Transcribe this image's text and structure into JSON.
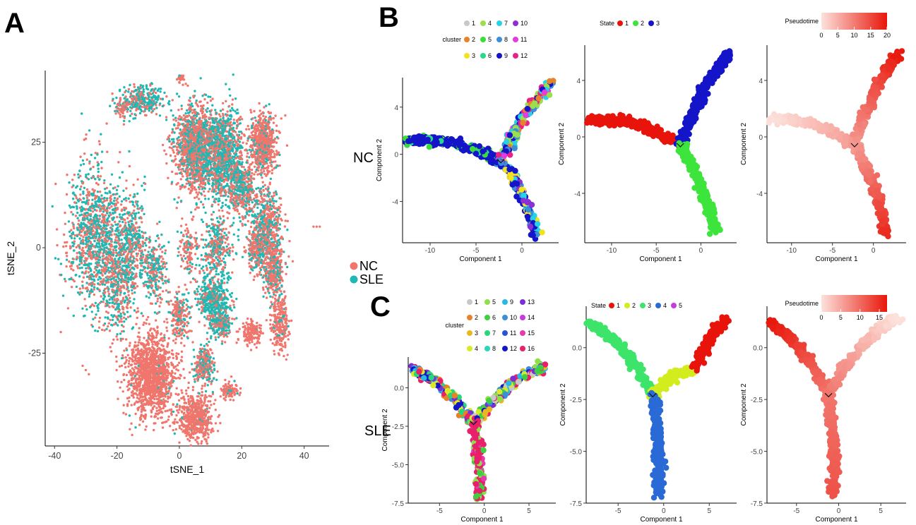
{
  "panels": {
    "A": "A",
    "B": "B",
    "C": "C"
  },
  "row_labels": {
    "nc": "NC",
    "sle": "SLE"
  },
  "chart_data": [
    {
      "id": "A",
      "type": "scatter",
      "xlabel": "tSNE_1",
      "ylabel": "tSNE_2",
      "xlim": [
        -43,
        48
      ],
      "ylim": [
        -47,
        42
      ],
      "xticks": [
        -40,
        -20,
        0,
        20,
        40
      ],
      "yticks": [
        -25,
        0,
        25
      ],
      "legend": {
        "placement": "right",
        "entries": [
          "NC",
          "SLE"
        ]
      },
      "colors": {
        "NC": "#f0766d",
        "SLE": "#1fb8b3"
      },
      "clusters": [
        {
          "cx": -27,
          "cy": 3,
          "rx": 8,
          "ry": 15,
          "n": 1100,
          "sle": 0.55
        },
        {
          "cx": -16,
          "cy": 0,
          "rx": 5,
          "ry": 11,
          "n": 500,
          "sle": 0.55
        },
        {
          "cx": -20,
          "cy": -10,
          "rx": 5,
          "ry": 10,
          "n": 300,
          "sle": 0.5
        },
        {
          "cx": -8,
          "cy": -6,
          "rx": 4,
          "ry": 7,
          "n": 250,
          "sle": 0.55
        },
        {
          "cx": -12,
          "cy": 35,
          "rx": 6,
          "ry": 3,
          "n": 300,
          "sle": 0.65
        },
        {
          "cx": -18,
          "cy": 33,
          "rx": 2,
          "ry": 2,
          "n": 60,
          "sle": 0.2
        },
        {
          "cx": 0.5,
          "cy": 40,
          "rx": 1,
          "ry": 1,
          "n": 25,
          "sle": 0.0
        },
        {
          "cx": 5,
          "cy": 24,
          "rx": 6,
          "ry": 9,
          "n": 1300,
          "sle": 0.35
        },
        {
          "cx": 14,
          "cy": 22,
          "rx": 6,
          "ry": 10,
          "n": 1100,
          "sle": 0.6
        },
        {
          "cx": 20,
          "cy": 14,
          "rx": 4,
          "ry": 6,
          "n": 400,
          "sle": 0.45
        },
        {
          "cx": 27,
          "cy": 25,
          "rx": 4,
          "ry": 6,
          "n": 600,
          "sle": 0.15
        },
        {
          "cx": 28,
          "cy": 6,
          "rx": 4,
          "ry": 8,
          "n": 450,
          "sle": 0.4
        },
        {
          "cx": 30,
          "cy": -5,
          "rx": 3,
          "ry": 7,
          "n": 400,
          "sle": 0.3
        },
        {
          "cx": 25,
          "cy": 0,
          "rx": 2.5,
          "ry": 5,
          "n": 250,
          "sle": 0.35
        },
        {
          "cx": 32,
          "cy": -18,
          "rx": 2.5,
          "ry": 6,
          "n": 250,
          "sle": 0.1
        },
        {
          "cx": 23,
          "cy": -20,
          "rx": 3,
          "ry": 2.5,
          "n": 150,
          "sle": 0.05
        },
        {
          "cx": 12,
          "cy": 0,
          "rx": 5,
          "ry": 6,
          "n": 300,
          "sle": 0.5
        },
        {
          "cx": 11,
          "cy": -12,
          "rx": 5,
          "ry": 5,
          "n": 450,
          "sle": 0.75
        },
        {
          "cx": 13,
          "cy": -18,
          "rx": 3,
          "ry": 3,
          "n": 200,
          "sle": 0.65
        },
        {
          "cx": 0,
          "cy": -16,
          "rx": 3,
          "ry": 5,
          "n": 200,
          "sle": 0.25
        },
        {
          "cx": -9,
          "cy": -30,
          "rx": 7,
          "ry": 9,
          "n": 1300,
          "sle": 0.02
        },
        {
          "cx": 5,
          "cy": -40,
          "rx": 5,
          "ry": 5,
          "n": 550,
          "sle": 0.05
        },
        {
          "cx": 8,
          "cy": -28,
          "rx": 3,
          "ry": 4,
          "n": 250,
          "sle": 0.4
        },
        {
          "cx": 16,
          "cy": -34,
          "rx": 2.5,
          "ry": 2,
          "n": 100,
          "sle": 0.1
        },
        {
          "cx": 3,
          "cy": 0,
          "rx": 3,
          "ry": 6,
          "n": 120,
          "sle": 0.25
        }
      ],
      "stray": [
        {
          "x": 43,
          "y": 5,
          "group": "NC"
        },
        {
          "x": 44,
          "y": 5,
          "group": "NC"
        },
        {
          "x": 45,
          "y": 5,
          "group": "NC"
        },
        {
          "x": -31,
          "y": -28,
          "group": "NC"
        },
        {
          "x": -30,
          "y": -29,
          "group": "NC"
        },
        {
          "x": -29,
          "y": -30,
          "group": "NC"
        },
        {
          "x": -38,
          "y": -20,
          "group": "NC"
        }
      ]
    },
    {
      "id": "B1",
      "type": "scatter",
      "xlabel": "Component 1",
      "ylabel": "Component 2",
      "xlim": [
        -13,
        4
      ],
      "ylim": [
        -7.5,
        6.5
      ],
      "xticks": [
        -10,
        -5,
        0
      ],
      "yticks": [
        -4,
        0,
        4
      ],
      "color_by": "cluster",
      "legend": {
        "title": "cluster",
        "placement": "top",
        "entries": [
          "1",
          "2",
          "3",
          "4",
          "5",
          "6",
          "7",
          "8",
          "9",
          "10",
          "11",
          "12"
        ],
        "colors": [
          "#c8c8c8",
          "#e8822a",
          "#f2e31c",
          "#9be04a",
          "#3bdc3b",
          "#29d98a",
          "#28d2e6",
          "#3c8fd6",
          "#1414c8",
          "#8e2fd6",
          "#e43ae0",
          "#e8208a"
        ]
      },
      "branches": [
        {
          "from": [
            -12.5,
            1.2
          ],
          "to": [
            -2.3,
            -0.6
          ],
          "mix": [
            8,
            8,
            8,
            8,
            4,
            5
          ]
        },
        {
          "from": [
            -2.3,
            -0.6
          ],
          "to": [
            3.2,
            6.0
          ],
          "mix": [
            3,
            6,
            7,
            8,
            1,
            11,
            10
          ]
        },
        {
          "from": [
            -2.3,
            -0.6
          ],
          "to": [
            1.6,
            -6.8
          ],
          "mix": [
            8,
            7,
            8,
            6,
            9,
            2
          ]
        }
      ]
    },
    {
      "id": "B2",
      "type": "scatter",
      "xlabel": "Component 1",
      "ylabel": "Component 2",
      "xlim": [
        -13,
        4
      ],
      "ylim": [
        -7.5,
        6.5
      ],
      "xticks": [
        -10,
        -5,
        0
      ],
      "yticks": [
        -4,
        0,
        4
      ],
      "color_by": "State",
      "legend": {
        "title": "State",
        "placement": "top",
        "entries": [
          "1",
          "2",
          "3"
        ],
        "colors": [
          "#e8140c",
          "#3ce43c",
          "#1414c8"
        ]
      },
      "branches": [
        {
          "from": [
            -12.5,
            1.2
          ],
          "to": [
            -2.3,
            -0.6
          ],
          "state": 0
        },
        {
          "from": [
            -2.3,
            -0.6
          ],
          "to": [
            3.2,
            6.0
          ],
          "state": 2
        },
        {
          "from": [
            -2.3,
            -0.6
          ],
          "to": [
            1.6,
            -6.8
          ],
          "state": 1
        }
      ]
    },
    {
      "id": "B3",
      "type": "scatter",
      "xlabel": "Component 1",
      "ylabel": "Component 2",
      "xlim": [
        -13,
        4
      ],
      "ylim": [
        -7.5,
        6.5
      ],
      "xticks": [
        -10,
        -5,
        0
      ],
      "yticks": [
        -4,
        0,
        4
      ],
      "color_by": "Pseudotime",
      "legend": {
        "title": "Pseudotime",
        "placement": "top",
        "ticks": [
          "0",
          "5",
          "10",
          "15",
          "20"
        ],
        "range": [
          0,
          20
        ]
      },
      "branches": [
        {
          "from": [
            -12.5,
            1.2
          ],
          "to": [
            -2.3,
            -0.6
          ],
          "pt": [
            0,
            7
          ]
        },
        {
          "from": [
            -2.3,
            -0.6
          ],
          "to": [
            3.2,
            6.0
          ],
          "pt": [
            7,
            20
          ]
        },
        {
          "from": [
            -2.3,
            -0.6
          ],
          "to": [
            1.6,
            -6.8
          ],
          "pt": [
            7,
            18
          ]
        }
      ]
    },
    {
      "id": "C1",
      "type": "scatter",
      "xlabel": "Component 1",
      "ylabel": "Component 2",
      "xlim": [
        -8.5,
        8
      ],
      "ylim": [
        -7.5,
        2
      ],
      "xticks": [
        -5,
        0,
        5
      ],
      "yticks": [
        -7.5,
        -5.0,
        -2.5,
        0.0
      ],
      "color_by": "cluster",
      "legend": {
        "title": "cluster",
        "placement": "top",
        "entries": [
          "1",
          "2",
          "3",
          "4",
          "5",
          "6",
          "7",
          "8",
          "9",
          "10",
          "11",
          "12",
          "13",
          "14",
          "15",
          "16"
        ],
        "colors": [
          "#c8c8c8",
          "#e8822a",
          "#e8b822",
          "#d8e82a",
          "#8ee04a",
          "#3fcf3f",
          "#28d878",
          "#2ad6b8",
          "#28b8e6",
          "#3c8fd6",
          "#2c52d6",
          "#1414c8",
          "#7a2fd6",
          "#c83ae0",
          "#e43ab0",
          "#e8206a"
        ]
      },
      "branches": [
        {
          "from": [
            -8.0,
            1.2
          ],
          "to": [
            -1.2,
            -2.3
          ],
          "mix": [
            8,
            9,
            11,
            12,
            15,
            3,
            1,
            6
          ]
        },
        {
          "from": [
            -1.2,
            -2.3
          ],
          "to": [
            6.8,
            1.4
          ],
          "mix": [
            4,
            5,
            3,
            8,
            9,
            11,
            12,
            15,
            0,
            2
          ]
        },
        {
          "from": [
            -1.2,
            -2.3
          ],
          "to": [
            -0.6,
            -7.1
          ],
          "mix": [
            15,
            15,
            15,
            14,
            4,
            5
          ]
        }
      ]
    },
    {
      "id": "C2",
      "type": "scatter",
      "xlabel": "Component 1",
      "ylabel": "Component 2",
      "xlim": [
        -8.5,
        8
      ],
      "ylim": [
        -7.5,
        2
      ],
      "xticks": [
        -5,
        0,
        5
      ],
      "yticks": [
        -7.5,
        -5.0,
        -2.5,
        0.0
      ],
      "color_by": "State",
      "legend": {
        "title": "State",
        "placement": "top",
        "entries": [
          "1",
          "2",
          "3",
          "4",
          "5"
        ],
        "colors": [
          "#e8140c",
          "#d2ec1e",
          "#3ce46a",
          "#2a6ad6",
          "#c83ae0"
        ]
      },
      "branches": [
        {
          "from": [
            -8.0,
            1.2
          ],
          "to": [
            -1.2,
            -2.3
          ],
          "state": 2
        },
        {
          "from": [
            -1.2,
            -2.3
          ],
          "to": [
            3.5,
            -1.0
          ],
          "state": 1
        },
        {
          "from": [
            3.5,
            -1.0
          ],
          "to": [
            6.8,
            1.4
          ],
          "state": 0
        },
        {
          "from": [
            -1.2,
            -2.3
          ],
          "to": [
            -0.6,
            -7.1
          ],
          "state": 3
        }
      ]
    },
    {
      "id": "C3",
      "type": "scatter",
      "xlabel": "Component 1",
      "ylabel": "Component 2",
      "xlim": [
        -8.5,
        8
      ],
      "ylim": [
        -7.5,
        2
      ],
      "xticks": [
        -5,
        0,
        5
      ],
      "yticks": [
        -7.5,
        -5.0,
        -2.5,
        0.0
      ],
      "color_by": "Pseudotime",
      "legend": {
        "title": "Pseudotime",
        "placement": "top",
        "ticks": [
          "0",
          "5",
          "10",
          "15"
        ],
        "range": [
          0,
          17
        ]
      },
      "branches": [
        {
          "from": [
            -8.0,
            1.2
          ],
          "to": [
            -1.2,
            -2.3
          ],
          "pt": [
            17,
            9
          ]
        },
        {
          "from": [
            -1.2,
            -2.3
          ],
          "to": [
            6.8,
            1.4
          ],
          "pt": [
            9,
            0
          ]
        },
        {
          "from": [
            -1.2,
            -2.3
          ],
          "to": [
            -0.6,
            -7.1
          ],
          "pt": [
            9,
            12
          ]
        }
      ]
    }
  ]
}
